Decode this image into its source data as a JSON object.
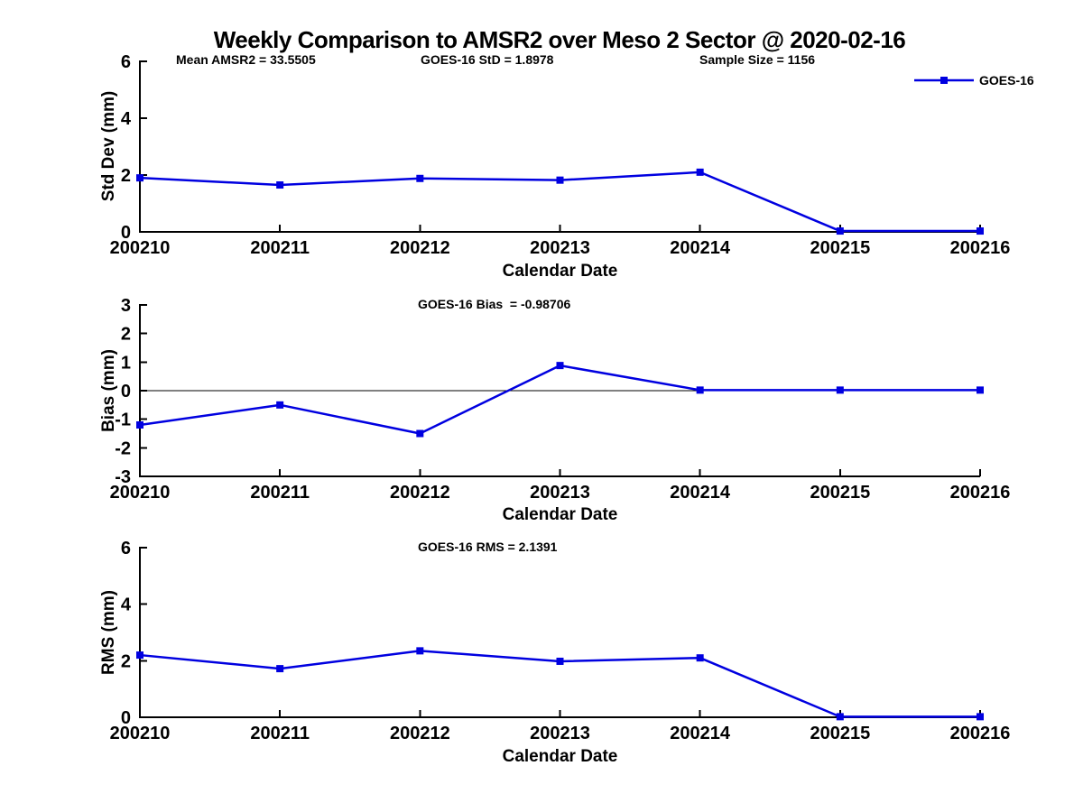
{
  "title": "Weekly Comparison to AMSR2 over Meso 2 Sector @ 2020-02-16",
  "colors": {
    "line": "#0000e0",
    "axis": "#000000",
    "text": "#000000",
    "background": "#ffffff"
  },
  "legend": {
    "label": "GOES-16",
    "position": "top-right",
    "marker": "square"
  },
  "chart_data": [
    {
      "type": "line",
      "panel": "std-dev",
      "annotations": [
        "Mean AMSR2 = 33.5505",
        "GOES-16 StD = 1.8978",
        "Sample Size = 1156"
      ],
      "ylabel": "Std Dev (mm)",
      "xlabel": "Calendar Date",
      "categories": [
        "200210",
        "200211",
        "200212",
        "200213",
        "200214",
        "200215",
        "200216"
      ],
      "series": [
        {
          "name": "GOES-16",
          "values": [
            1.9,
            1.65,
            1.88,
            1.82,
            2.1,
            0.03,
            0.03
          ]
        }
      ],
      "ylim": [
        0,
        6
      ],
      "yticks": [
        0,
        2,
        4,
        6
      ],
      "grid": false,
      "zero_line": false
    },
    {
      "type": "line",
      "panel": "bias",
      "title": "GOES-16 Bias  = -0.98706",
      "ylabel": "Bias (mm)",
      "xlabel": "Calendar Date",
      "categories": [
        "200210",
        "200211",
        "200212",
        "200213",
        "200214",
        "200215",
        "200216"
      ],
      "series": [
        {
          "name": "GOES-16",
          "values": [
            -1.2,
            -0.5,
            -1.5,
            0.88,
            0.02,
            0.02,
            0.02
          ]
        }
      ],
      "ylim": [
        -3,
        3
      ],
      "yticks": [
        -3,
        -2,
        -1,
        0,
        1,
        2,
        3
      ],
      "grid": false,
      "zero_line": true
    },
    {
      "type": "line",
      "panel": "rms",
      "title": "GOES-16 RMS = 2.1391",
      "ylabel": "RMS (mm)",
      "xlabel": "Calendar Date",
      "categories": [
        "200210",
        "200211",
        "200212",
        "200213",
        "200214",
        "200215",
        "200216"
      ],
      "series": [
        {
          "name": "GOES-16",
          "values": [
            2.2,
            1.72,
            2.35,
            1.98,
            2.1,
            0.02,
            0.02
          ]
        }
      ],
      "ylim": [
        0,
        6
      ],
      "yticks": [
        0,
        2,
        4,
        6
      ],
      "grid": false,
      "zero_line": false
    }
  ]
}
